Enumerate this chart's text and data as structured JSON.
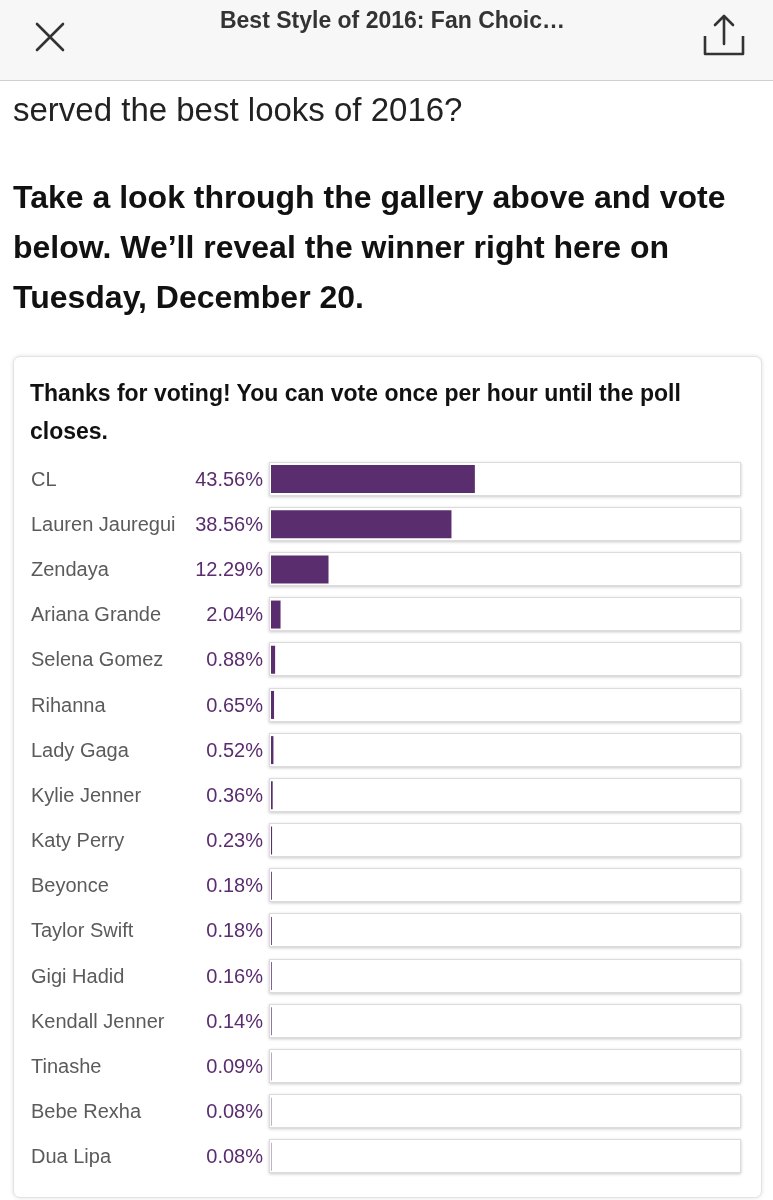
{
  "chart_data": {
    "type": "bar",
    "orientation": "horizontal",
    "title": "Best Style of 2016: Fan Choic…",
    "annotations": [
      "served the best looks of 2016?",
      "Take a look through the gallery above and vote below. We’ll reveal the winner right here on Tuesday, December 20.",
      "Thanks for voting! You can vote once per hour until the poll closes."
    ],
    "categories": [
      "CL",
      "Lauren Jauregui",
      "Zendaya",
      "Ariana Grande",
      "Selena Gomez",
      "Rihanna",
      "Lady Gaga",
      "Kylie Jenner",
      "Katy Perry",
      "Beyonce",
      "Taylor Swift",
      "Gigi Hadid",
      "Kendall Jenner",
      "Tinashe",
      "Bebe Rexha",
      "Dua Lipa"
    ],
    "values": [
      43.56,
      38.56,
      12.29,
      2.04,
      0.88,
      0.65,
      0.52,
      0.36,
      0.23,
      0.18,
      0.18,
      0.16,
      0.14,
      0.09,
      0.08,
      0.08
    ],
    "value_labels": [
      "43.56%",
      "38.56%",
      "12.29%",
      "2.04%",
      "0.88%",
      "0.65%",
      "0.52%",
      "0.36%",
      "0.23%",
      "0.18%",
      "0.18%",
      "0.16%",
      "0.14%",
      "0.09%",
      "0.08%",
      "0.08%"
    ],
    "color": "#5a2d6e",
    "xlim": [
      0,
      100
    ],
    "tick_labels": "y"
  }
}
